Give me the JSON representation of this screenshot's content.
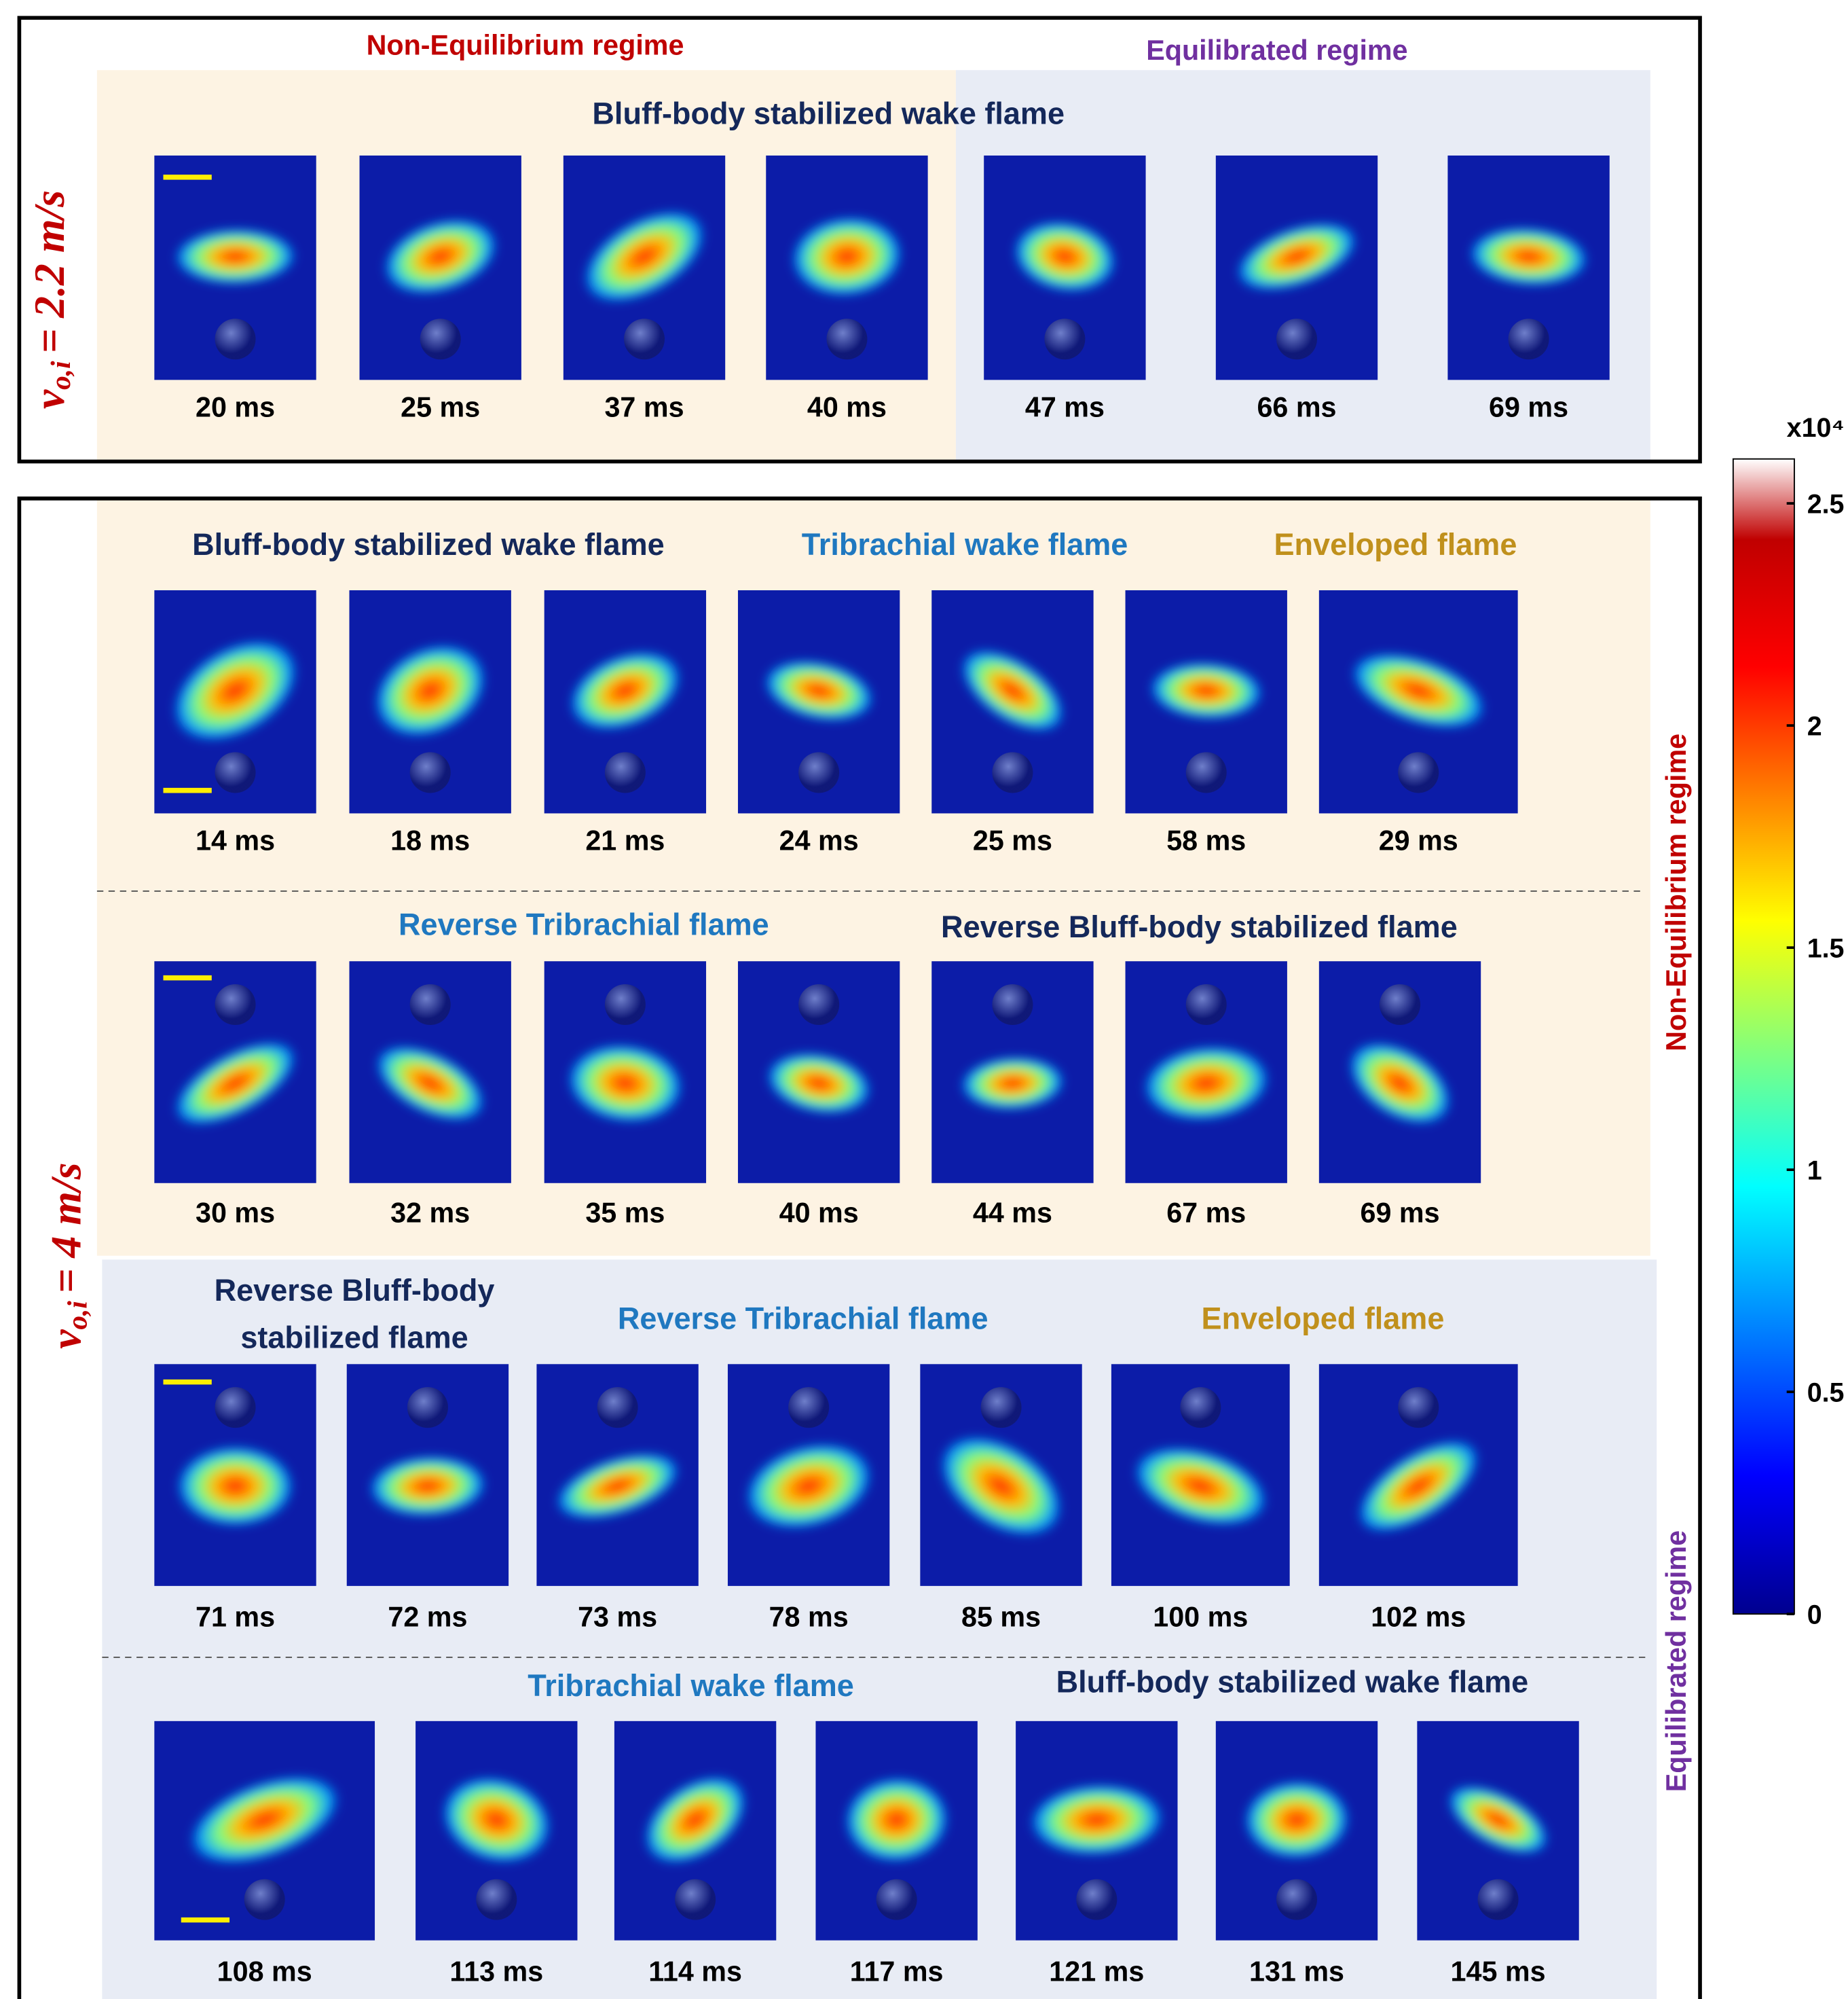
{
  "top_panel": {
    "velocity": {
      "symbol": "v",
      "subscript": "o,i",
      "value": "= 2.2 m/s"
    },
    "regimes": [
      "Non-Equilibrium regime",
      "Equilibrated regime"
    ],
    "rows": [
      {
        "headings": [
          "Bluff-body stabilized  wake flame"
        ],
        "times": [
          "20 ms",
          "25 ms",
          "37 ms",
          "40 ms",
          "47 ms",
          "66 ms",
          "69 ms"
        ]
      }
    ]
  },
  "bottom_panel": {
    "velocity": {
      "symbol": "v",
      "subscript": "o,i",
      "value": "= 4 m/s"
    },
    "regimes": [
      "Non-Equilibrium regime",
      "Equilibrated regime"
    ],
    "rows": [
      {
        "headings": [
          "Bluff-body stabilized  wake flame",
          "Tribrachial wake flame",
          "Enveloped flame"
        ],
        "times": [
          "14 ms",
          "18 ms",
          "21 ms",
          "24 ms",
          "25 ms",
          "58 ms",
          "29 ms"
        ]
      },
      {
        "headings": [
          "Reverse Tribrachial flame",
          "Reverse Bluff-body stabilized flame"
        ],
        "times": [
          "30 ms",
          "32 ms",
          "35 ms",
          "40 ms",
          "44 ms",
          "67 ms",
          "69 ms"
        ]
      },
      {
        "headings": [
          "Reverse Bluff-body",
          "stabilized flame",
          "Reverse Tribrachial flame",
          "Enveloped flame"
        ],
        "times": [
          "71 ms",
          "72 ms",
          "73 ms",
          "78 ms",
          "85 ms",
          "100 ms",
          "102 ms"
        ]
      },
      {
        "headings": [
          "Tribrachial wake flame",
          "Bluff-body stabilized  wake flame"
        ],
        "times": [
          "108 ms",
          "113 ms",
          "114 ms",
          "117 ms",
          "121 ms",
          "131 ms",
          "145 ms"
        ]
      }
    ]
  },
  "colorbar": {
    "label": "x10⁴",
    "lim": [
      0,
      2.6
    ],
    "ticks": [
      0,
      0.5,
      1,
      1.5,
      2,
      2.5
    ]
  }
}
